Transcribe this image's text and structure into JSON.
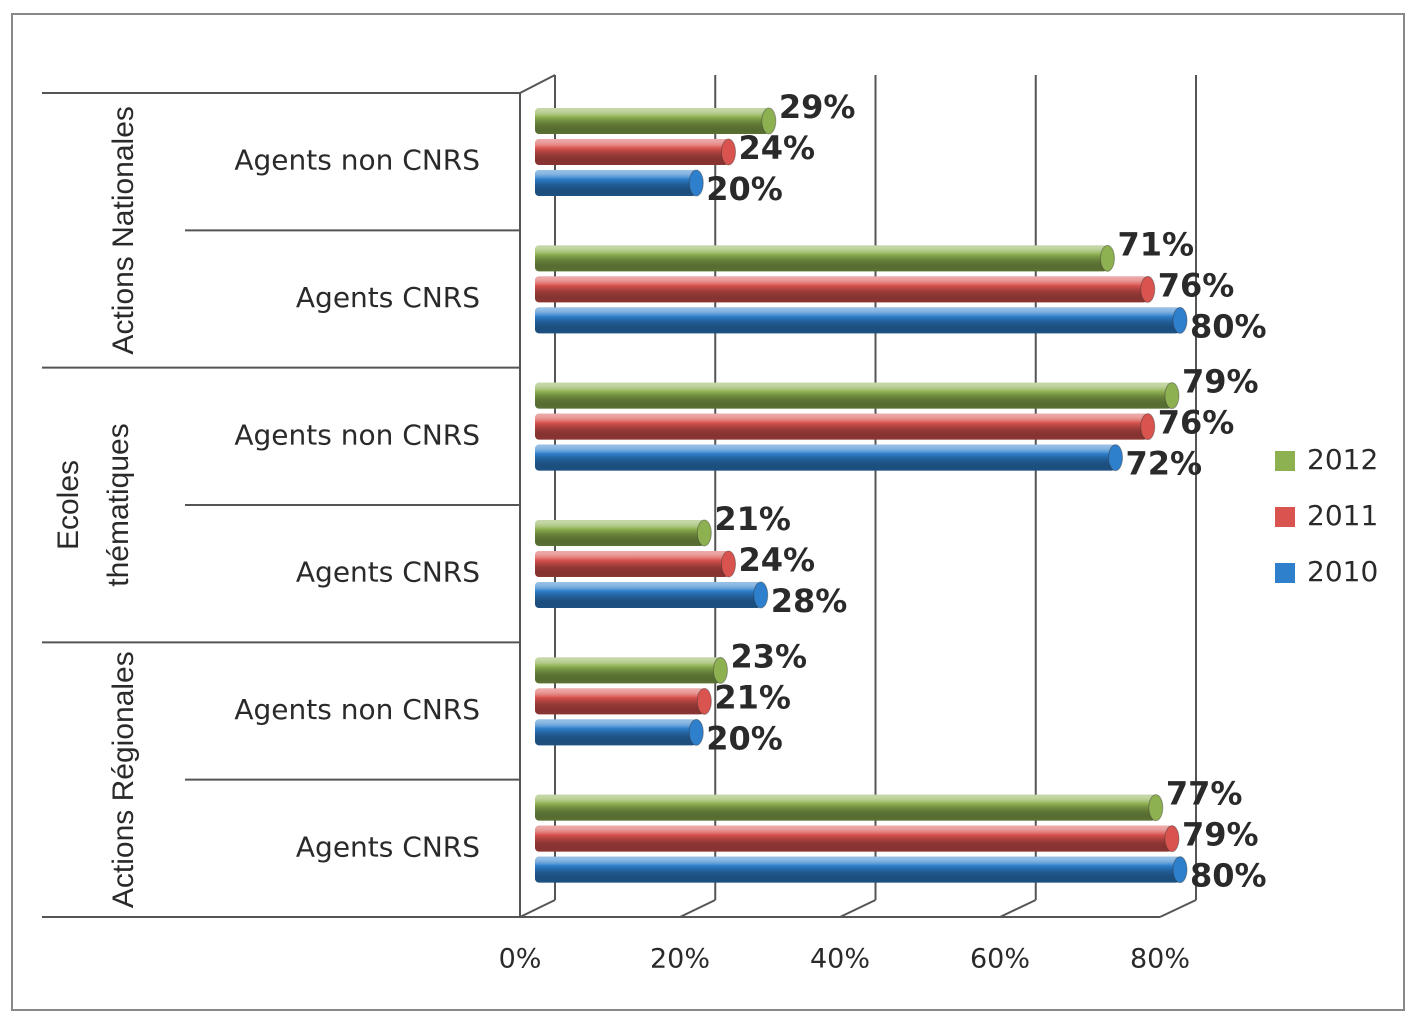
{
  "chart_data": {
    "type": "bar",
    "groups": [
      [
        "Actions Nationales"
      ],
      [
        "Ecoles",
        "thématiques"
      ],
      [
        "Actions Régionales"
      ]
    ],
    "categories": [
      "Agents non CNRS",
      "Agents CNRS",
      "Agents non CNRS",
      "Agents CNRS",
      "Agents non CNRS",
      "Agents CNRS"
    ],
    "series": [
      {
        "name": "2012",
        "color": "#8db050",
        "values": [
          29,
          71,
          79,
          21,
          23,
          77
        ],
        "value_labels": [
          "29%",
          "71%",
          "79%",
          "21%",
          "23%",
          "77%"
        ]
      },
      {
        "name": "2011",
        "color": "#d9534f",
        "values": [
          24,
          76,
          76,
          24,
          21,
          79
        ],
        "value_labels": [
          "24%",
          "76%",
          "76%",
          "24%",
          "21%",
          "79%"
        ]
      },
      {
        "name": "2010",
        "color": "#2e7fcc",
        "values": [
          20,
          80,
          72,
          28,
          20,
          80
        ],
        "value_labels": [
          "20%",
          "80%",
          "72%",
          "28%",
          "20%",
          "80%"
        ]
      }
    ],
    "xlim": [
      0,
      80
    ],
    "xticks": [
      {
        "value": 0,
        "label": "0%"
      },
      {
        "value": 20,
        "label": "20%"
      },
      {
        "value": 40,
        "label": "40%"
      },
      {
        "value": 60,
        "label": "60%"
      },
      {
        "value": 80,
        "label": "80%"
      }
    ],
    "grid": true,
    "legend": "right"
  }
}
